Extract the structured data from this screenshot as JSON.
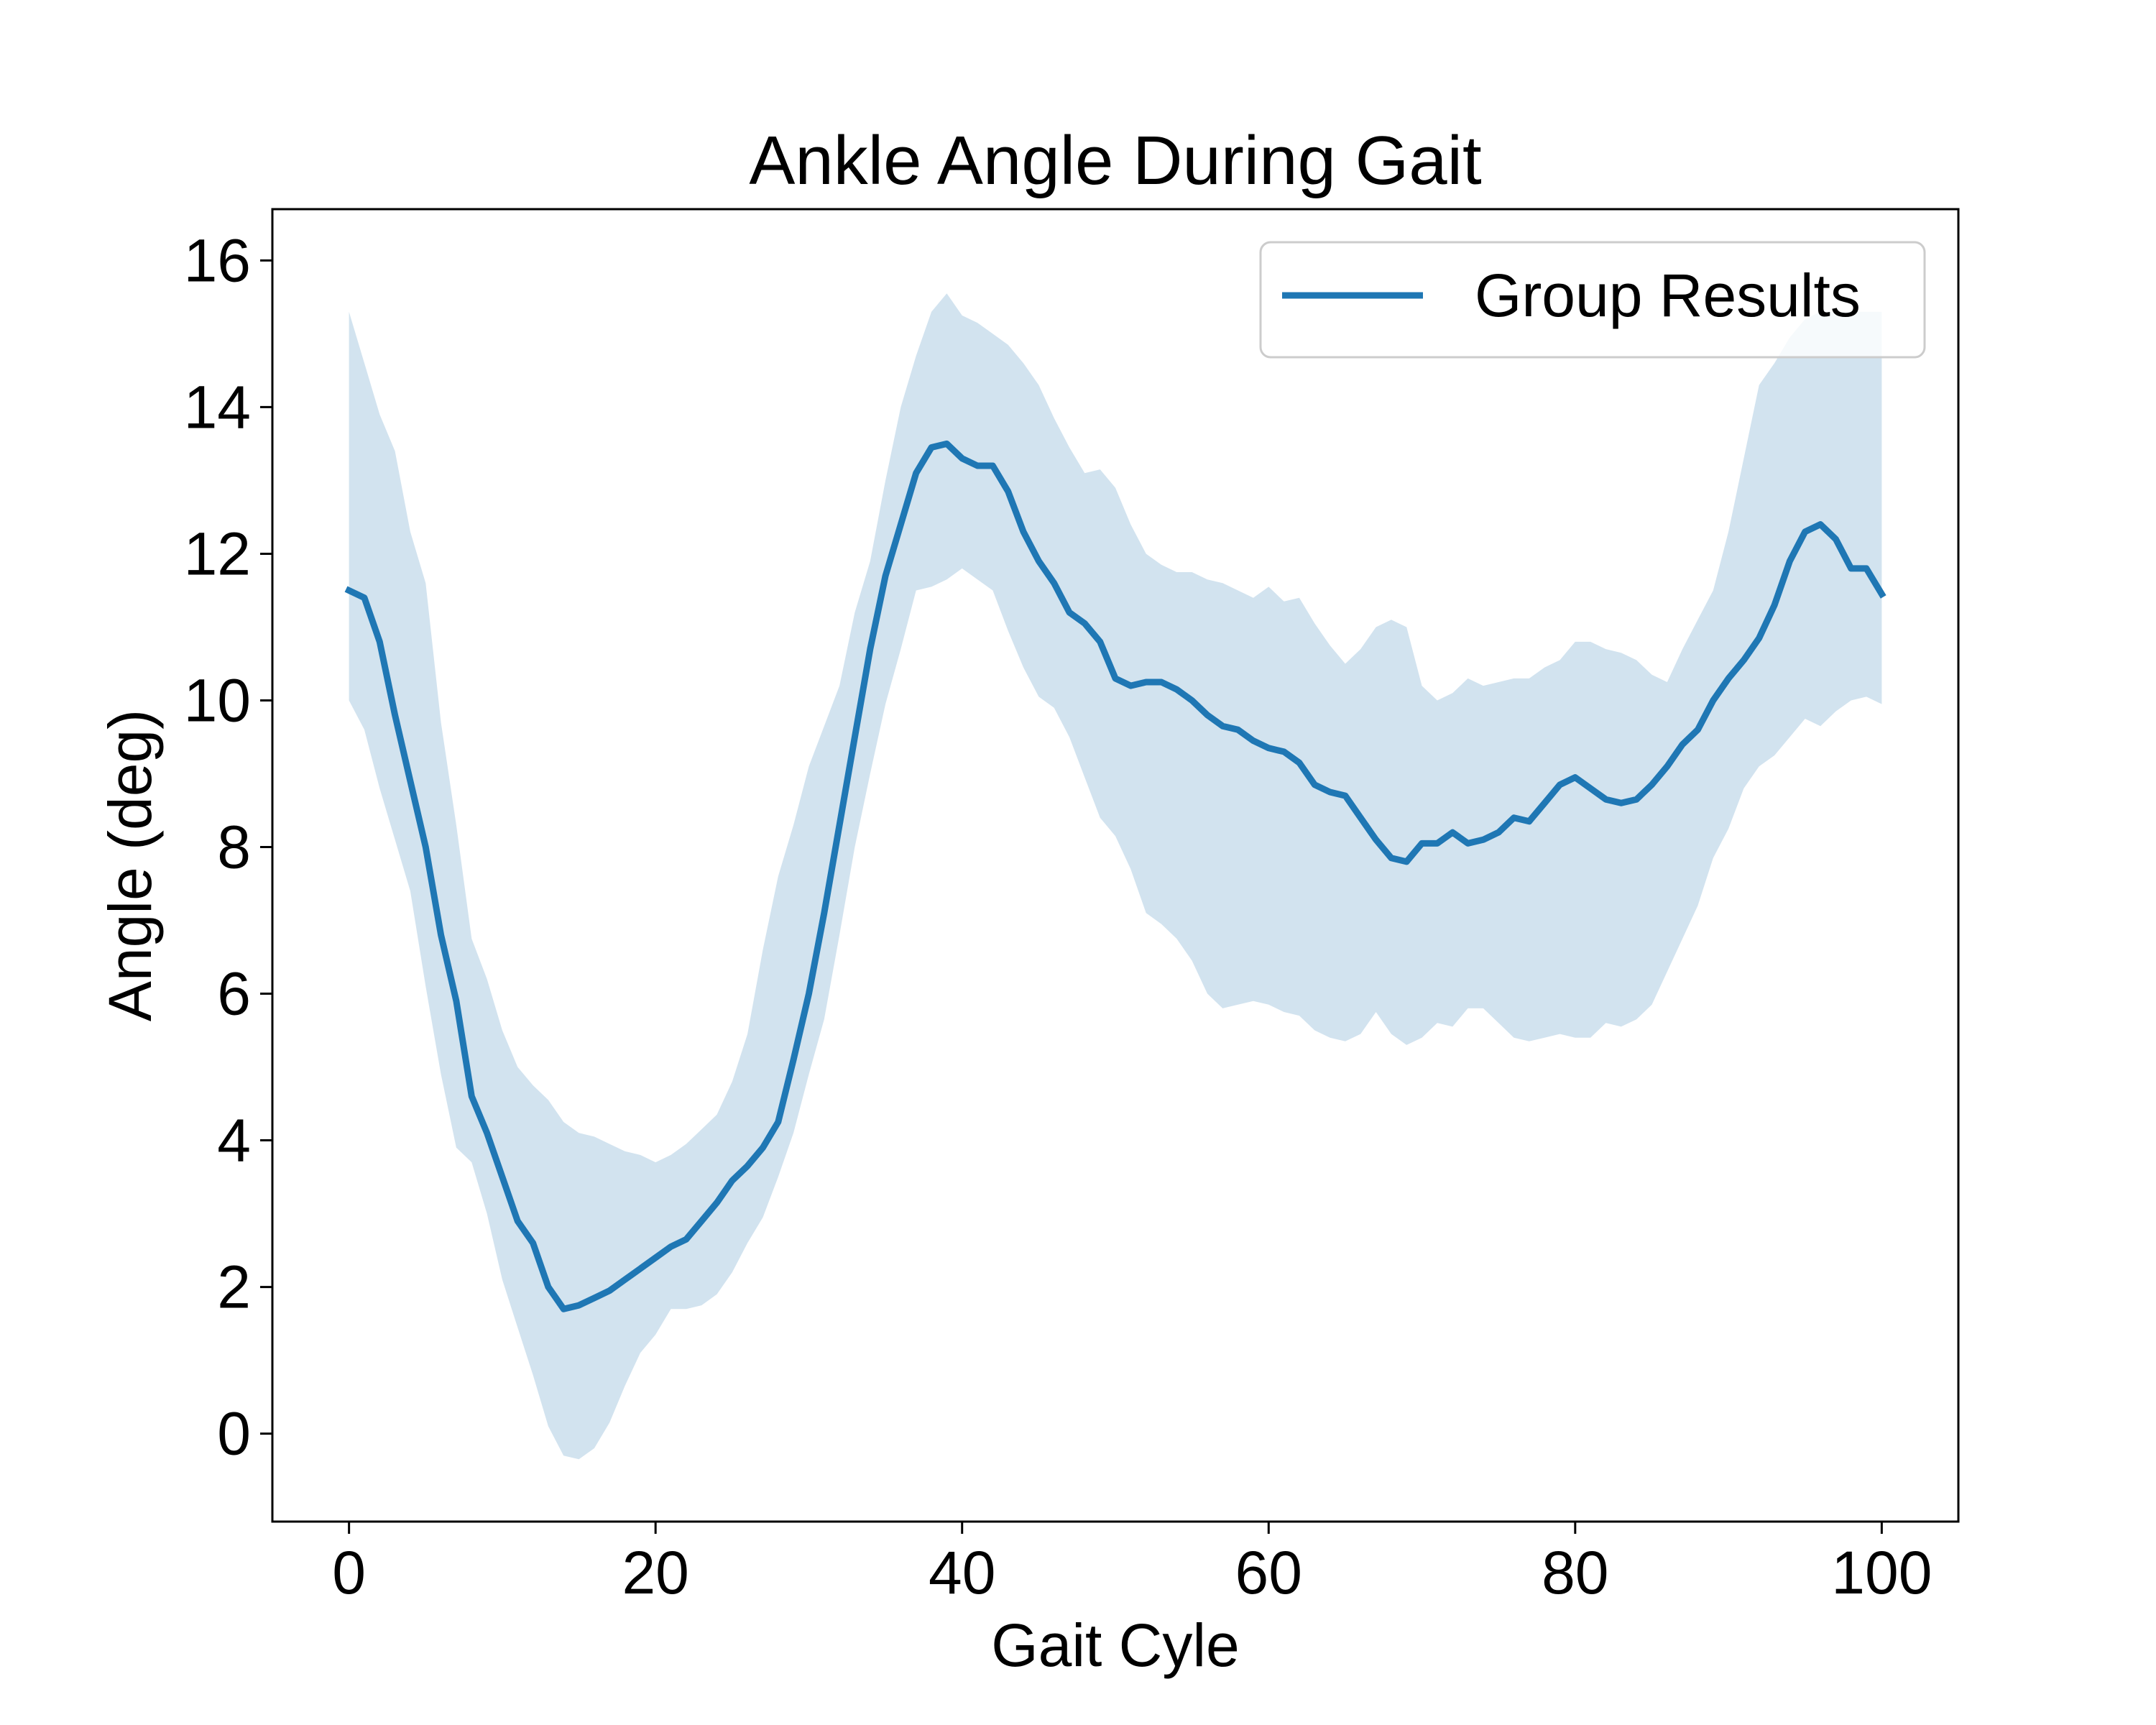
{
  "chart_data": {
    "type": "line",
    "title": "Ankle Angle During Gait",
    "xlabel": "Gait Cyle",
    "ylabel": "Angle (deg)",
    "xlim": [
      -5,
      105
    ],
    "ylim": [
      -1.2,
      16.7
    ],
    "xticks": [
      0,
      20,
      40,
      60,
      80,
      100
    ],
    "xtick_labels": [
      "0",
      "20",
      "40",
      "60",
      "80",
      "100"
    ],
    "yticks": [
      0,
      2,
      4,
      6,
      8,
      10,
      12,
      14,
      16
    ],
    "ytick_labels": [
      "0",
      "2",
      "4",
      "6",
      "8",
      "10",
      "12",
      "14",
      "16"
    ],
    "grid": false,
    "legend_position": "top-right",
    "colors": {
      "line": "#1f77b4",
      "band": "#d2e3ef",
      "axes": "#000000",
      "legend_border": "#cccccc"
    },
    "series": [
      {
        "name": "Group Results",
        "shaded_band": "upper/lower variability band",
        "x": [
          0,
          1,
          2,
          3,
          4,
          5,
          6,
          7,
          8,
          9,
          10,
          11,
          12,
          13,
          14,
          15,
          16,
          17,
          18,
          19,
          20,
          21,
          22,
          23,
          24,
          25,
          26,
          27,
          28,
          29,
          30,
          31,
          32,
          33,
          34,
          35,
          36,
          37,
          38,
          39,
          40,
          41,
          42,
          43,
          44,
          45,
          46,
          47,
          48,
          49,
          50,
          51,
          52,
          53,
          54,
          55,
          56,
          57,
          58,
          59,
          60,
          61,
          62,
          63,
          64,
          65,
          66,
          67,
          68,
          69,
          70,
          71,
          72,
          73,
          74,
          75,
          76,
          77,
          78,
          79,
          80,
          81,
          82,
          83,
          84,
          85,
          86,
          87,
          88,
          89,
          90,
          91,
          92,
          93,
          94,
          95,
          96,
          97,
          98,
          99,
          100
        ],
        "values": [
          11.5,
          11.4,
          10.8,
          9.8,
          8.9,
          8.0,
          6.8,
          5.9,
          4.6,
          4.1,
          3.5,
          2.9,
          2.6,
          2.0,
          1.7,
          1.75,
          1.85,
          1.95,
          2.1,
          2.25,
          2.4,
          2.55,
          2.65,
          2.9,
          3.15,
          3.45,
          3.65,
          3.9,
          4.25,
          5.1,
          6.0,
          7.1,
          8.3,
          9.5,
          10.7,
          11.7,
          12.4,
          13.1,
          13.45,
          13.5,
          13.3,
          13.2,
          13.2,
          12.85,
          12.3,
          11.9,
          11.6,
          11.2,
          11.05,
          10.8,
          10.3,
          10.2,
          10.25,
          10.25,
          10.15,
          10.0,
          9.8,
          9.65,
          9.6,
          9.45,
          9.35,
          9.3,
          9.15,
          8.85,
          8.75,
          8.7,
          8.4,
          8.1,
          7.85,
          7.8,
          8.05,
          8.05,
          8.2,
          8.05,
          8.1,
          8.2,
          8.4,
          8.35,
          8.6,
          8.85,
          8.95,
          8.8,
          8.65,
          8.6,
          8.65,
          8.85,
          9.1,
          9.4,
          9.6,
          10.0,
          10.3,
          10.55,
          10.85,
          11.3,
          11.9,
          12.3,
          12.4,
          12.2,
          11.8,
          11.8,
          11.45
        ],
        "upper": [
          15.3,
          14.6,
          13.9,
          13.4,
          12.3,
          11.6,
          9.7,
          8.3,
          6.75,
          6.2,
          5.5,
          5.0,
          4.75,
          4.55,
          4.25,
          4.1,
          4.05,
          3.95,
          3.85,
          3.8,
          3.7,
          3.8,
          3.95,
          4.15,
          4.35,
          4.8,
          5.45,
          6.6,
          7.6,
          8.3,
          9.1,
          9.65,
          10.2,
          11.2,
          11.9,
          13.0,
          14.0,
          14.7,
          15.3,
          15.55,
          15.25,
          15.15,
          15.0,
          14.85,
          14.6,
          14.3,
          13.85,
          13.45,
          13.1,
          13.15,
          12.9,
          12.4,
          12.0,
          11.85,
          11.75,
          11.75,
          11.65,
          11.6,
          11.5,
          11.4,
          11.55,
          11.35,
          11.4,
          11.05,
          10.75,
          10.5,
          10.7,
          11.0,
          11.1,
          11.0,
          10.2,
          10.0,
          10.1,
          10.3,
          10.2,
          10.25,
          10.3,
          10.3,
          10.45,
          10.55,
          10.8,
          10.8,
          10.7,
          10.65,
          10.55,
          10.35,
          10.25,
          10.7,
          11.1,
          11.5,
          12.3,
          13.3,
          14.3,
          14.6,
          14.95,
          15.2,
          15.3,
          15.3,
          15.3,
          15.3,
          15.3
        ],
        "lower": [
          10.0,
          9.6,
          8.8,
          8.1,
          7.4,
          6.1,
          4.9,
          3.9,
          3.7,
          3.0,
          2.1,
          1.45,
          0.8,
          0.1,
          -0.3,
          -0.35,
          -0.2,
          0.15,
          0.65,
          1.1,
          1.35,
          1.7,
          1.7,
          1.75,
          1.9,
          2.2,
          2.6,
          2.95,
          3.5,
          4.1,
          4.9,
          5.65,
          6.8,
          8.0,
          9.0,
          9.95,
          10.7,
          11.5,
          11.55,
          11.65,
          11.8,
          11.65,
          11.5,
          10.95,
          10.45,
          10.05,
          9.9,
          9.5,
          8.95,
          8.4,
          8.15,
          7.7,
          7.1,
          6.95,
          6.75,
          6.45,
          6.0,
          5.8,
          5.85,
          5.9,
          5.85,
          5.75,
          5.7,
          5.5,
          5.4,
          5.35,
          5.45,
          5.75,
          5.45,
          5.3,
          5.4,
          5.6,
          5.55,
          5.8,
          5.8,
          5.6,
          5.4,
          5.35,
          5.4,
          5.45,
          5.4,
          5.4,
          5.6,
          5.55,
          5.65,
          5.85,
          6.3,
          6.75,
          7.2,
          7.85,
          8.25,
          8.8,
          9.1,
          9.25,
          9.5,
          9.75,
          9.65,
          9.85,
          10.0,
          10.05,
          9.95
        ]
      }
    ]
  }
}
